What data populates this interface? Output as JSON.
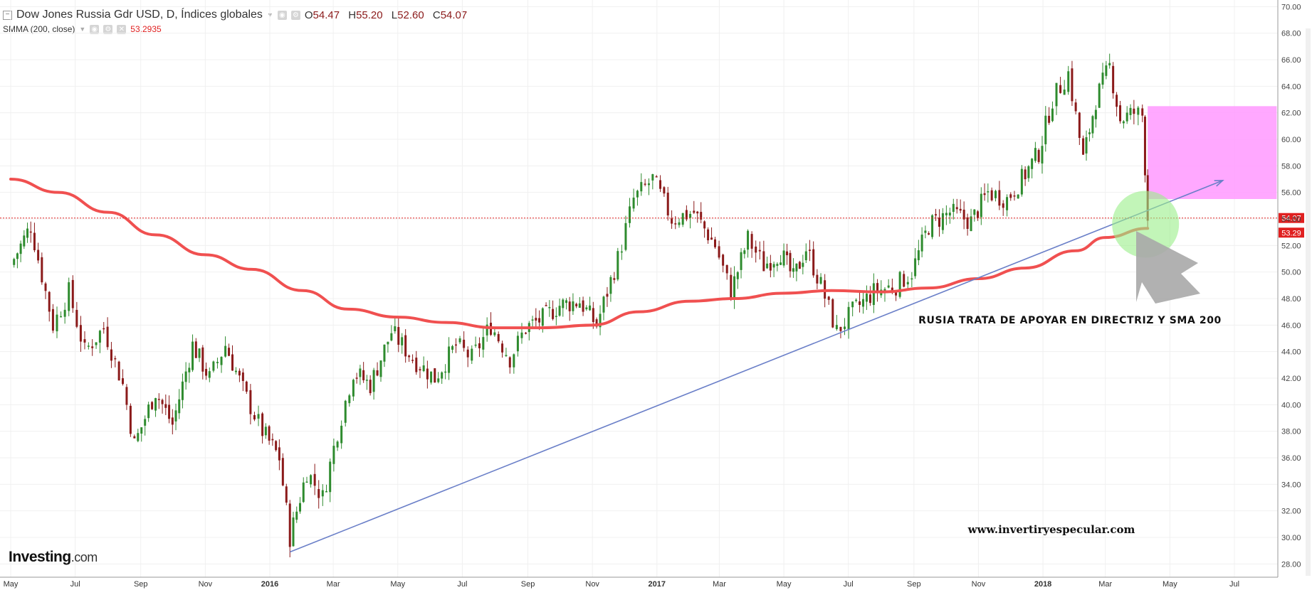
{
  "header": {
    "title": "Dow Jones Russia Gdr USD, D, Índices globales",
    "ohlc": [
      {
        "label": "O",
        "value": "54.47"
      },
      {
        "label": "H",
        "value": "55.20"
      },
      {
        "label": "L",
        "value": "52.60"
      },
      {
        "label": "C",
        "value": "54.07"
      }
    ],
    "indicator_label": "SMMA (200, close)",
    "indicator_value": "53.2935"
  },
  "brand": {
    "logo_main": "Investing",
    "logo_suffix": ".com"
  },
  "annotations": {
    "main_text": "RUSIA TRATA DE APOYAR EN DIRECTRIZ Y SMA 200",
    "website": "www.invertiryespecular.com"
  },
  "price_labels": {
    "last_price": "54.07",
    "sma_value": "53.29"
  },
  "colors": {
    "up_candle": "#2e8b2e",
    "down_candle": "#8b1a1a",
    "sma_line": "#f05050",
    "trend_line": "#6a7fc8",
    "target_zone": "#ff99ff",
    "highlight_circle": "#99ee88",
    "arrow": "#a8a8a8"
  },
  "chart_data": {
    "type": "candlestick",
    "instrument": "Dow Jones Russia Gdr USD",
    "timeframe": "D",
    "x_ticks": [
      "May",
      "Jul",
      "Sep",
      "Nov",
      "2016",
      "Mar",
      "May",
      "Jul",
      "Sep",
      "Nov",
      "2017",
      "Mar",
      "May",
      "Jul",
      "Sep",
      "Nov",
      "2018",
      "Mar",
      "May",
      "Jul"
    ],
    "y_ticks": [
      "70.00",
      "68.00",
      "66.00",
      "64.00",
      "62.00",
      "60.00",
      "58.00",
      "56.00",
      "54.00",
      "52.00",
      "50.00",
      "48.00",
      "46.00",
      "44.00",
      "42.00",
      "40.00",
      "38.00",
      "36.00",
      "34.00",
      "32.00",
      "30.00",
      "28.00"
    ],
    "ylim": [
      27,
      70.5
    ],
    "price_path": [
      {
        "date": "2015-05-01",
        "close": 50.5
      },
      {
        "date": "2015-05-20",
        "close": 53.5
      },
      {
        "date": "2015-06-10",
        "close": 46.0
      },
      {
        "date": "2015-06-25",
        "close": 48.5
      },
      {
        "date": "2015-07-10",
        "close": 44.0
      },
      {
        "date": "2015-07-28",
        "close": 45.8
      },
      {
        "date": "2015-08-15",
        "close": 41.5
      },
      {
        "date": "2015-08-26",
        "close": 37.0
      },
      {
        "date": "2015-09-15",
        "close": 41.0
      },
      {
        "date": "2015-10-01",
        "close": 38.5
      },
      {
        "date": "2015-10-20",
        "close": 44.5
      },
      {
        "date": "2015-11-05",
        "close": 42.0
      },
      {
        "date": "2015-11-20",
        "close": 44.5
      },
      {
        "date": "2015-12-10",
        "close": 40.5
      },
      {
        "date": "2015-12-25",
        "close": 38.0
      },
      {
        "date": "2016-01-10",
        "close": 36.0
      },
      {
        "date": "2016-01-20",
        "close": 30.0
      },
      {
        "date": "2016-02-05",
        "close": 35.0
      },
      {
        "date": "2016-02-20",
        "close": 33.0
      },
      {
        "date": "2016-03-05",
        "close": 38.0
      },
      {
        "date": "2016-03-20",
        "close": 42.5
      },
      {
        "date": "2016-04-05",
        "close": 41.5
      },
      {
        "date": "2016-04-25",
        "close": 45.5
      },
      {
        "date": "2016-05-15",
        "close": 43.5
      },
      {
        "date": "2016-06-05",
        "close": 42.0
      },
      {
        "date": "2016-06-25",
        "close": 44.5
      },
      {
        "date": "2016-07-10",
        "close": 43.5
      },
      {
        "date": "2016-07-28",
        "close": 46.0
      },
      {
        "date": "2016-08-15",
        "close": 43.5
      },
      {
        "date": "2016-08-30",
        "close": 45.8
      },
      {
        "date": "2016-09-15",
        "close": 46.5
      },
      {
        "date": "2016-10-01",
        "close": 47.5
      },
      {
        "date": "2016-10-20",
        "close": 47.8
      },
      {
        "date": "2016-11-05",
        "close": 46.0
      },
      {
        "date": "2016-11-25",
        "close": 51.0
      },
      {
        "date": "2016-12-10",
        "close": 55.5
      },
      {
        "date": "2016-12-28",
        "close": 57.0
      },
      {
        "date": "2017-01-15",
        "close": 54.0
      },
      {
        "date": "2017-02-05",
        "close": 54.5
      },
      {
        "date": "2017-02-25",
        "close": 52.0
      },
      {
        "date": "2017-03-12",
        "close": 48.5
      },
      {
        "date": "2017-03-28",
        "close": 52.5
      },
      {
        "date": "2017-04-12",
        "close": 50.5
      },
      {
        "date": "2017-04-28",
        "close": 51.5
      },
      {
        "date": "2017-05-10",
        "close": 49.5
      },
      {
        "date": "2017-05-22",
        "close": 51.8
      },
      {
        "date": "2017-06-05",
        "close": 49.0
      },
      {
        "date": "2017-06-20",
        "close": 45.5
      },
      {
        "date": "2017-07-05",
        "close": 47.0
      },
      {
        "date": "2017-07-25",
        "close": 48.5
      },
      {
        "date": "2017-08-15",
        "close": 49.0
      },
      {
        "date": "2017-08-30",
        "close": 50.0
      },
      {
        "date": "2017-09-15",
        "close": 53.5
      },
      {
        "date": "2017-10-05",
        "close": 54.5
      },
      {
        "date": "2017-10-25",
        "close": 53.8
      },
      {
        "date": "2017-11-10",
        "close": 56.0
      },
      {
        "date": "2017-11-28",
        "close": 55.5
      },
      {
        "date": "2017-12-12",
        "close": 57.0
      },
      {
        "date": "2017-12-28",
        "close": 59.0
      },
      {
        "date": "2018-01-10",
        "close": 63.0
      },
      {
        "date": "2018-01-25",
        "close": 65.0
      },
      {
        "date": "2018-02-08",
        "close": 58.5
      },
      {
        "date": "2018-02-20",
        "close": 63.0
      },
      {
        "date": "2018-03-05",
        "close": 65.5
      },
      {
        "date": "2018-03-15",
        "close": 61.5
      },
      {
        "date": "2018-03-28",
        "close": 62.0
      },
      {
        "date": "2018-04-05",
        "close": 61.8
      },
      {
        "date": "2018-04-10",
        "close": 54.1
      }
    ],
    "sma_series": {
      "name": "SMMA (200, close)",
      "points": [
        {
          "date": "2015-05-01",
          "value": 57.0
        },
        {
          "date": "2015-06-15",
          "value": 56.0
        },
        {
          "date": "2015-08-01",
          "value": 54.5
        },
        {
          "date": "2015-09-15",
          "value": 52.8
        },
        {
          "date": "2015-11-01",
          "value": 51.3
        },
        {
          "date": "2015-12-15",
          "value": 50.2
        },
        {
          "date": "2016-02-01",
          "value": 48.6
        },
        {
          "date": "2016-03-15",
          "value": 47.2
        },
        {
          "date": "2016-05-01",
          "value": 46.6
        },
        {
          "date": "2016-06-15",
          "value": 46.2
        },
        {
          "date": "2016-08-01",
          "value": 45.8
        },
        {
          "date": "2016-09-15",
          "value": 45.8
        },
        {
          "date": "2016-11-01",
          "value": 46.0
        },
        {
          "date": "2016-12-15",
          "value": 47.0
        },
        {
          "date": "2017-02-01",
          "value": 47.8
        },
        {
          "date": "2017-03-15",
          "value": 48.0
        },
        {
          "date": "2017-05-01",
          "value": 48.4
        },
        {
          "date": "2017-06-15",
          "value": 48.6
        },
        {
          "date": "2017-08-01",
          "value": 48.5
        },
        {
          "date": "2017-09-15",
          "value": 48.8
        },
        {
          "date": "2017-11-01",
          "value": 49.5
        },
        {
          "date": "2017-12-15",
          "value": 50.3
        },
        {
          "date": "2018-02-01",
          "value": 51.6
        },
        {
          "date": "2018-03-01",
          "value": 52.6
        },
        {
          "date": "2018-04-10",
          "value": 53.29
        }
      ]
    },
    "trendline": {
      "from": {
        "date": "2016-01-20",
        "value": 28.9
      },
      "to": {
        "date": "2018-06-20",
        "value": 56.9
      }
    },
    "target_zone": {
      "from_date": "2018-04-10",
      "to_date": "2018-08-10",
      "low": 55.5,
      "high": 62.5
    },
    "last_price": 54.07,
    "sma_value": 53.29,
    "grid": true
  }
}
